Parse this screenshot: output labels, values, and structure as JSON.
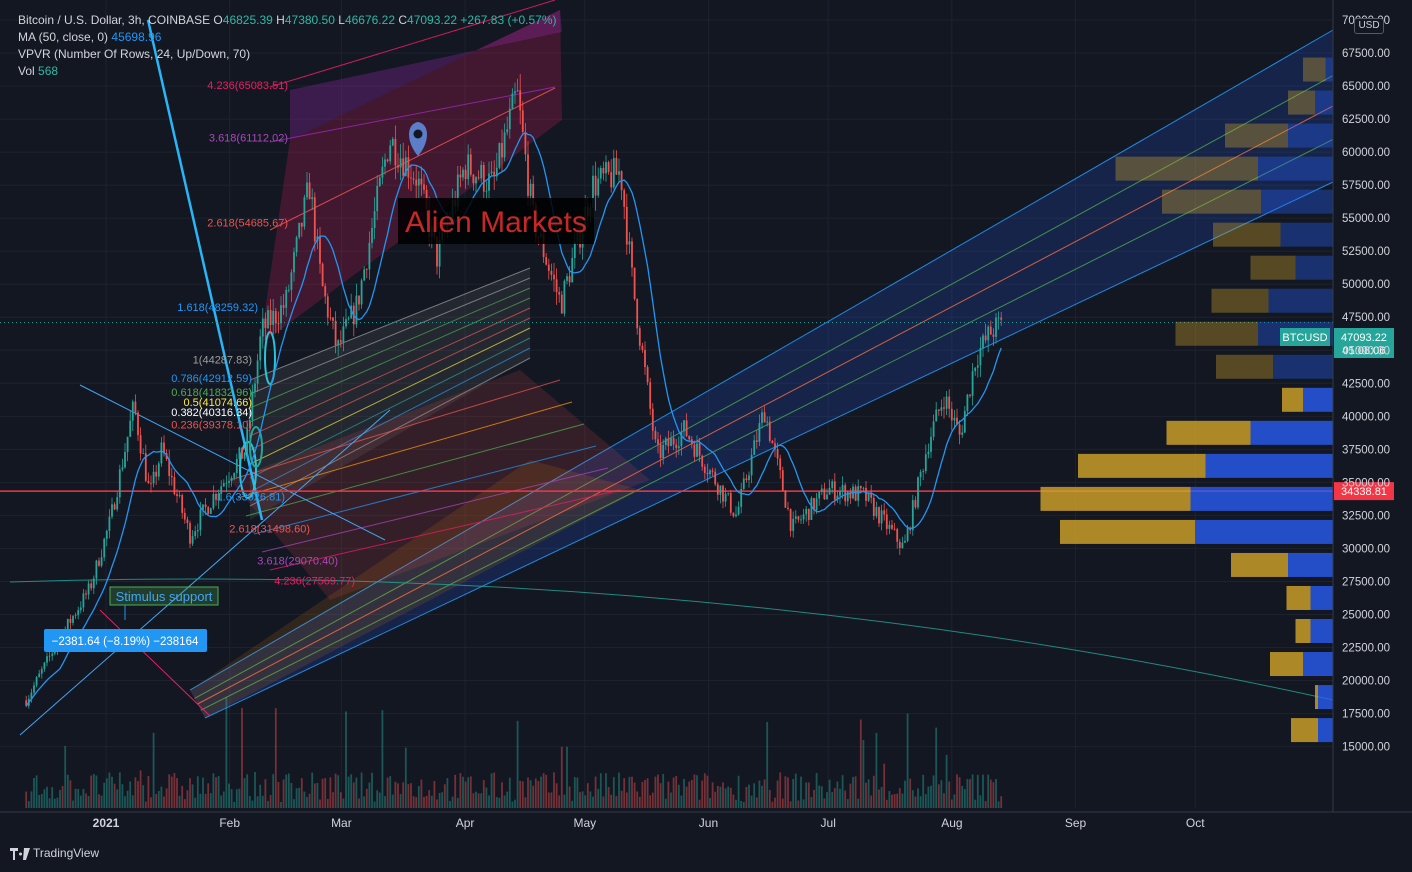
{
  "legend": {
    "symbol": "Bitcoin / U.S. Dollar, 3h, COINBASE",
    "open_label": "O",
    "open": "46825.39",
    "high_label": "H",
    "high": "47380.50",
    "low_label": "L",
    "low": "46676.22",
    "close_label": "C",
    "close": "47093.22",
    "change": "+267.83 (+0.57%)",
    "ma_label": "MA (50, close, 0)",
    "ma_value": "45698.96",
    "vpvr_label": "VPVR (Number Of Rows, 24, Up/Down, 70)",
    "vol_label": "Vol",
    "vol_value": "568"
  },
  "currency": "USD",
  "footer": {
    "brand": "TradingView"
  },
  "annotations": {
    "text_box": "Alien Markets",
    "stimulus": "Stimulus support",
    "measure": "−2381.64 (−8.19%) −238164"
  },
  "price_tags": {
    "symbol_tag": "BTCUSD",
    "last_price": "47093.22",
    "countdown": "01:08:06",
    "horizontal_line": "34338.81"
  },
  "colors": {
    "background": "#131722",
    "up": "#26a69a",
    "down": "#ef5350",
    "ma": "#2196f3",
    "channel": "#2962ff",
    "fib": "#e53935",
    "vp_up": "#2962ff",
    "vp_down": "#d4a529"
  },
  "chart_data": {
    "type": "candlestick",
    "x_ticks": [
      "2021",
      "Feb",
      "Mar",
      "Apr",
      "May",
      "Jun",
      "Jul",
      "Aug",
      "Sep",
      "Oct"
    ],
    "y_ticks": [
      "70000.00",
      "67500.00",
      "65000.00",
      "62500.00",
      "60000.00",
      "57500.00",
      "55000.00",
      "52500.00",
      "50000.00",
      "47500.00",
      "45000.00",
      "42500.00",
      "40000.00",
      "37500.00",
      "35000.00",
      "32500.00",
      "30000.00",
      "27500.00",
      "25000.00",
      "22500.00",
      "20000.00",
      "17500.00",
      "15000.00"
    ],
    "ylim": [
      13000,
      71000
    ],
    "price_path": [
      {
        "date": "2020-12-12",
        "price": 18500
      },
      {
        "date": "2020-12-20",
        "price": 23000
      },
      {
        "date": "2020-12-28",
        "price": 27000
      },
      {
        "date": "2021-01-02",
        "price": 32000
      },
      {
        "date": "2021-01-08",
        "price": 40800
      },
      {
        "date": "2021-01-12",
        "price": 34000
      },
      {
        "date": "2021-01-15",
        "price": 37500
      },
      {
        "date": "2021-01-22",
        "price": 31000
      },
      {
        "date": "2021-01-28",
        "price": 34000
      },
      {
        "date": "2021-02-05",
        "price": 37500
      },
      {
        "date": "2021-02-09",
        "price": 46500
      },
      {
        "date": "2021-02-15",
        "price": 48500
      },
      {
        "date": "2021-02-21",
        "price": 57500
      },
      {
        "date": "2021-02-24",
        "price": 50000
      },
      {
        "date": "2021-02-28",
        "price": 45000
      },
      {
        "date": "2021-03-05",
        "price": 48500
      },
      {
        "date": "2021-03-13",
        "price": 61000
      },
      {
        "date": "2021-03-20",
        "price": 58000
      },
      {
        "date": "2021-03-25",
        "price": 52000
      },
      {
        "date": "2021-04-01",
        "price": 59000
      },
      {
        "date": "2021-04-08",
        "price": 57500
      },
      {
        "date": "2021-04-14",
        "price": 64500
      },
      {
        "date": "2021-04-18",
        "price": 55000
      },
      {
        "date": "2021-04-25",
        "price": 48500
      },
      {
        "date": "2021-05-03",
        "price": 57500
      },
      {
        "date": "2021-05-10",
        "price": 58500
      },
      {
        "date": "2021-05-13",
        "price": 50000
      },
      {
        "date": "2021-05-19",
        "price": 37000
      },
      {
        "date": "2021-05-26",
        "price": 39000
      },
      {
        "date": "2021-06-08",
        "price": 32500
      },
      {
        "date": "2021-06-15",
        "price": 40500
      },
      {
        "date": "2021-06-22",
        "price": 31500
      },
      {
        "date": "2021-07-01",
        "price": 34500
      },
      {
        "date": "2021-07-10",
        "price": 34000
      },
      {
        "date": "2021-07-20",
        "price": 30000
      },
      {
        "date": "2021-07-26",
        "price": 38000
      },
      {
        "date": "2021-07-30",
        "price": 41500
      },
      {
        "date": "2021-08-03",
        "price": 38500
      },
      {
        "date": "2021-08-07",
        "price": 44500
      },
      {
        "date": "2021-08-11",
        "price": 46500
      },
      {
        "date": "2021-08-14",
        "price": 47093
      }
    ],
    "moving_average": {
      "name": "MA (50, close, 0)",
      "last": 45698.96
    },
    "horizontal_line": 34338.81,
    "last_price": 47093.22,
    "fib_levels_upper": [
      {
        "label": "4.236(65083.51)",
        "price": 65083.51
      },
      {
        "label": "3.618(61112.02)",
        "price": 61112.02
      },
      {
        "label": "2.618(54685.67)",
        "price": 54685.67
      },
      {
        "label": "1.618(48259.32)",
        "price": 48259.32
      },
      {
        "label": "1(44287.83)",
        "price": 44287.83
      },
      {
        "label": "0.786(42912.59)",
        "price": 42912.59
      },
      {
        "label": "0.618(41832.96)",
        "price": 41832.96
      },
      {
        "label": "0.5(41074.66)",
        "price": 41074.66
      },
      {
        "label": "0.382(40316.34)",
        "price": 40316.34
      },
      {
        "label": "0.236(39378.10)",
        "price": 39378.1
      }
    ],
    "fib_levels_lower": [
      {
        "label": "1.6(33926.81)",
        "price": 33926.81
      },
      {
        "label": "2.618(31498.60)",
        "price": 31498.6
      },
      {
        "label": "3.618(29070.40)",
        "price": 29070.4
      },
      {
        "label": "4.236(27569.77)",
        "price": 27569.77
      }
    ],
    "volume_profile": [
      {
        "price": 66250,
        "up": 0.05,
        "down": 0.15
      },
      {
        "price": 63750,
        "up": 0.12,
        "down": 0.18
      },
      {
        "price": 61250,
        "up": 0.3,
        "down": 0.42
      },
      {
        "price": 58750,
        "up": 0.5,
        "down": 0.95
      },
      {
        "price": 56250,
        "up": 0.48,
        "down": 0.66
      },
      {
        "price": 53750,
        "up": 0.35,
        "down": 0.45
      },
      {
        "price": 51250,
        "up": 0.25,
        "down": 0.3
      },
      {
        "price": 48750,
        "up": 0.43,
        "down": 0.38
      },
      {
        "price": 46250,
        "up": 0.5,
        "down": 0.55
      },
      {
        "price": 43750,
        "up": 0.4,
        "down": 0.38
      },
      {
        "price": 41250,
        "up": 0.2,
        "down": 0.14
      },
      {
        "price": 38750,
        "up": 0.55,
        "down": 0.56
      },
      {
        "price": 36250,
        "up": 0.85,
        "down": 0.85
      },
      {
        "price": 33750,
        "up": 0.95,
        "down": 1.0
      },
      {
        "price": 31250,
        "up": 0.92,
        "down": 0.9
      },
      {
        "price": 28750,
        "up": 0.3,
        "down": 0.38
      },
      {
        "price": 26250,
        "up": 0.15,
        "down": 0.16
      },
      {
        "price": 23750,
        "up": 0.15,
        "down": 0.1
      },
      {
        "price": 21250,
        "up": 0.2,
        "down": 0.22
      },
      {
        "price": 18750,
        "up": 0.1,
        "down": 0.02
      },
      {
        "price": 16250,
        "up": 0.1,
        "down": 0.18
      }
    ],
    "grid": true,
    "legend_position": "top-left"
  }
}
